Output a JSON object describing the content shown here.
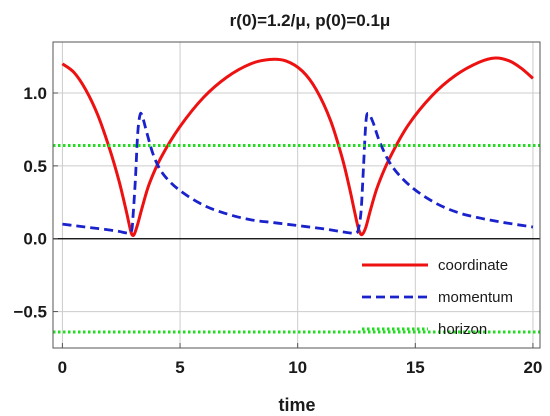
{
  "chart_data": {
    "type": "line",
    "title": "r(0)=1.2/μ, p(0)=0.1μ",
    "xlabel": "time",
    "ylabel": "",
    "xlim": [
      -0.4,
      20.3
    ],
    "ylim": [
      -0.75,
      1.35
    ],
    "xticks": [
      0,
      5,
      10,
      15,
      20
    ],
    "xtick_labels": [
      "0",
      "5",
      "10",
      "15",
      "20"
    ],
    "yticks": [
      -0.5,
      0.0,
      0.5,
      1.0
    ],
    "ytick_labels": [
      "−0.5",
      "0.0",
      "0.5",
      "1.0"
    ],
    "grid": true,
    "legend_position": "bottom-right",
    "series": [
      {
        "name": "coordinate",
        "color": "#ee1111",
        "style": "solid",
        "x": [
          0,
          0.5,
          1,
          1.5,
          2,
          2.4,
          2.7,
          2.85,
          2.95,
          3.05,
          3.2,
          3.4,
          3.7,
          4.2,
          5,
          6,
          7,
          8,
          8.8,
          9.5,
          10.2,
          10.8,
          11.4,
          11.9,
          12.2,
          12.4,
          12.55,
          12.65,
          12.75,
          12.9,
          13.1,
          13.4,
          13.9,
          14.7,
          15.7,
          16.7,
          17.7,
          18.4,
          19,
          19.5,
          20
        ],
        "y": [
          1.2,
          1.14,
          1.02,
          0.85,
          0.62,
          0.4,
          0.2,
          0.09,
          0.03,
          0.03,
          0.1,
          0.22,
          0.38,
          0.56,
          0.77,
          0.97,
          1.11,
          1.2,
          1.23,
          1.22,
          1.15,
          1.02,
          0.81,
          0.55,
          0.35,
          0.2,
          0.09,
          0.04,
          0.03,
          0.08,
          0.2,
          0.36,
          0.55,
          0.78,
          0.98,
          1.12,
          1.21,
          1.24,
          1.22,
          1.17,
          1.1
        ]
      },
      {
        "name": "momentum",
        "color": "#1a22cc",
        "style": "dashed",
        "x": [
          0,
          0.5,
          1,
          1.5,
          2,
          2.4,
          2.7,
          2.85,
          2.95,
          3.0,
          3.1,
          3.2,
          3.3,
          3.4,
          3.6,
          3.9,
          4.3,
          5,
          6,
          7,
          8,
          9,
          10,
          11,
          11.8,
          12.2,
          12.5,
          12.6,
          12.7,
          12.8,
          12.9,
          13.0,
          13.2,
          13.5,
          14,
          14.8,
          15.8,
          16.8,
          17.8,
          18.8,
          20
        ],
        "y": [
          0.1,
          0.09,
          0.08,
          0.07,
          0.06,
          0.05,
          0.04,
          0.04,
          0.06,
          0.15,
          0.4,
          0.72,
          0.85,
          0.84,
          0.72,
          0.56,
          0.44,
          0.33,
          0.23,
          0.17,
          0.13,
          0.11,
          0.09,
          0.07,
          0.05,
          0.04,
          0.04,
          0.08,
          0.2,
          0.5,
          0.8,
          0.86,
          0.8,
          0.66,
          0.5,
          0.36,
          0.25,
          0.18,
          0.14,
          0.11,
          0.08
        ]
      },
      {
        "name": "horizon",
        "color": "#22dd22",
        "style": "dotted",
        "x": [
          -0.4,
          20.3
        ],
        "y": [
          0.64,
          0.64
        ]
      },
      {
        "name": "",
        "color": "#22dd22",
        "style": "dotted",
        "x": [
          -0.4,
          20.3
        ],
        "y": [
          -0.64,
          -0.64
        ]
      }
    ]
  }
}
